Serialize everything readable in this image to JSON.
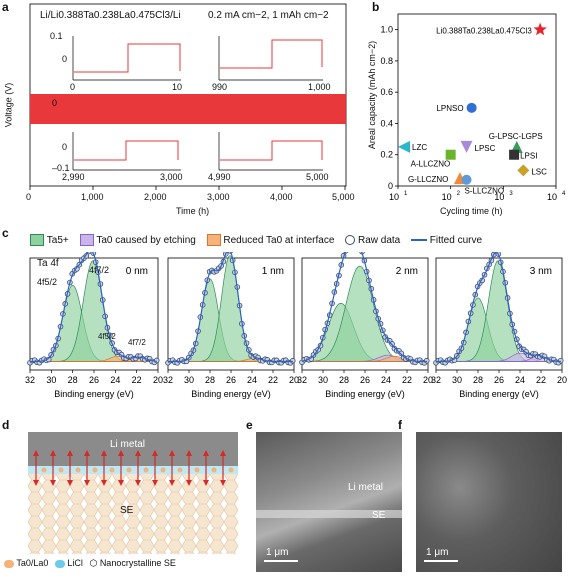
{
  "panels": {
    "a": {
      "letter": "a",
      "cell_label": "Li/Li0.388Ta0.238La0.475Cl3/Li",
      "conditions": "0.2 mA cm−2, 1 mAh cm−2",
      "ylabel": "Voltage (V)",
      "xlabel": "Time (h)",
      "main_xticks": [
        "0",
        "1,000",
        "2,000",
        "3,000",
        "4,000",
        "5,000"
      ],
      "inset_ticks": {
        "tl": [
          "0",
          "10"
        ],
        "tr": [
          "990",
          "1,000"
        ],
        "bl": [
          "2,990",
          "3,000"
        ],
        "br": [
          "4,990",
          "5,000"
        ]
      },
      "inset_yticks": [
        "0.1",
        "0",
        "–0.1"
      ],
      "main_yticks": [
        "0.1",
        "0",
        "–0.1"
      ]
    },
    "b": {
      "letter": "b",
      "ylabel": "Areal capacity (mAh cm−2)",
      "xlabel": "Cycling time (h)",
      "yticks": [
        "0",
        "0.2",
        "0.4",
        "0.6",
        "0.8",
        "1.0"
      ],
      "xticks": [
        "10",
        "10",
        "10",
        "10"
      ],
      "xtick_exps": [
        "1",
        "2",
        "3",
        "4"
      ]
    },
    "c": {
      "letter": "c",
      "legend": [
        "Ta5+",
        "Ta0 caused by etching",
        "Reduced Ta0 at interface",
        "Raw data",
        "Fitted curve"
      ],
      "subplots": [
        "0 nm",
        "1 nm",
        "2 nm",
        "3 nm"
      ],
      "xlabel": "Binding energy (eV)",
      "xticks": [
        "32",
        "30",
        "28",
        "26",
        "24",
        "22",
        "20"
      ],
      "annot_ta4f": "Ta 4f",
      "annot_4f52": "4f5/2",
      "annot_4f72": "4f7/2"
    },
    "d": {
      "letter": "d",
      "li_metal": "Li metal",
      "se": "SE",
      "legend": [
        "Ta0/La0",
        "LiCl",
        "Nanocrystalline SE"
      ]
    },
    "e": {
      "letter": "e",
      "label1": "Li metal",
      "label2": "SE",
      "scale": "1 μm"
    },
    "f": {
      "letter": "f",
      "scale": "1 μm"
    }
  },
  "chart_data": [
    {
      "type": "scatter",
      "title": "",
      "xlabel": "Cycling time (h)",
      "ylabel": "Areal capacity (mAh cm−2)",
      "xscale": "log",
      "xlim": [
        10,
        10000
      ],
      "ylim": [
        0,
        1.1
      ],
      "points": [
        {
          "label": "Li0.388Ta0.238La0.475Cl3",
          "x": 5000,
          "y": 1.0,
          "marker": "star",
          "color": "#e8232a"
        },
        {
          "label": "LPNSO",
          "x": 250,
          "y": 0.5,
          "marker": "circle",
          "color": "#2f6fd6"
        },
        {
          "label": "LZC",
          "x": 13,
          "y": 0.25,
          "marker": "triangle-left",
          "color": "#29b7c9"
        },
        {
          "label": "LPSC",
          "x": 200,
          "y": 0.25,
          "marker": "triangle-down",
          "color": "#a68bd9"
        },
        {
          "label": "G-LPSC-LGPS",
          "x": 1800,
          "y": 0.25,
          "marker": "triangle-up",
          "color": "#3a9d5e"
        },
        {
          "label": "A-LLCZNO",
          "x": 100,
          "y": 0.2,
          "marker": "square",
          "color": "#6ab42d"
        },
        {
          "label": "LPSI",
          "x": 1600,
          "y": 0.2,
          "marker": "square",
          "color": "#333333"
        },
        {
          "label": "LSC",
          "x": 2400,
          "y": 0.1,
          "marker": "diamond",
          "color": "#c8a02c"
        },
        {
          "label": "G-LLCZNO",
          "x": 150,
          "y": 0.05,
          "marker": "triangle-up",
          "color": "#f08a3a"
        },
        {
          "label": "S-LLCZNO",
          "x": 200,
          "y": 0.04,
          "marker": "circle",
          "color": "#5d9ad6"
        }
      ]
    },
    {
      "type": "line",
      "title": "",
      "xlabel": "Time (h)",
      "ylabel": "Voltage (V)",
      "xlim": [
        0,
        5000
      ],
      "ylim": [
        -0.1,
        0.1
      ],
      "description_values": {
        "overpotential_V": 0.05
      }
    }
  ]
}
